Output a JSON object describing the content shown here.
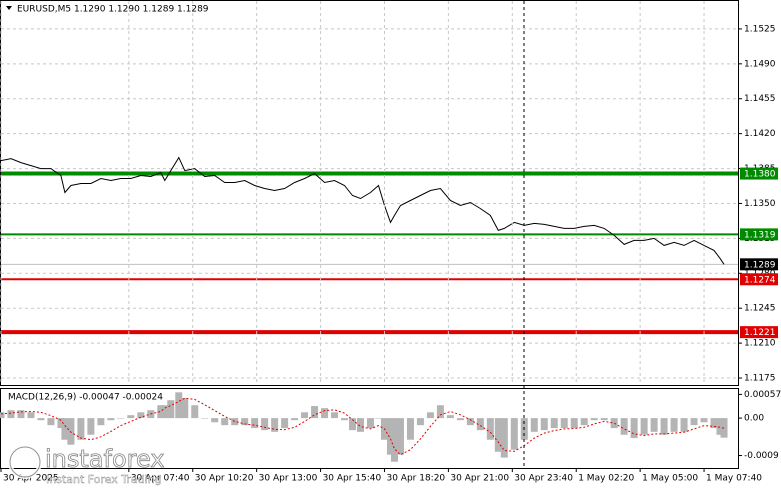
{
  "chart_data": [
    {
      "type": "line",
      "title": "EURUSD,M5  1.1290 1.1290 1.1289 1.1289",
      "color": "#000000",
      "x": [
        0,
        5,
        10,
        15,
        20,
        25,
        30,
        32,
        35,
        40,
        45,
        50,
        55,
        60,
        65,
        70,
        75,
        80,
        82,
        85,
        89,
        92,
        97,
        102,
        107,
        112,
        117,
        122,
        127,
        132,
        137,
        142,
        147,
        152,
        157,
        162,
        167,
        172,
        176,
        180,
        185,
        189,
        192,
        195,
        197,
        200,
        205,
        210,
        215,
        220,
        225,
        230,
        235,
        240,
        245,
        249,
        252,
        257,
        262,
        267,
        272,
        277,
        282,
        287,
        292,
        297,
        302,
        307,
        312,
        317,
        322,
        327,
        332,
        337,
        342,
        347,
        352,
        357,
        360,
        362
      ],
      "values": [
        1.1393,
        1.1395,
        1.1391,
        1.1388,
        1.1385,
        1.1385,
        1.1378,
        1.1361,
        1.1368,
        1.137,
        1.137,
        1.1375,
        1.1373,
        1.1375,
        1.1375,
        1.1378,
        1.1377,
        1.1381,
        1.1373,
        1.1383,
        1.1396,
        1.1383,
        1.1385,
        1.1377,
        1.1378,
        1.1371,
        1.1371,
        1.1373,
        1.1368,
        1.1365,
        1.1363,
        1.1365,
        1.1371,
        1.1375,
        1.138,
        1.1371,
        1.1373,
        1.1368,
        1.1358,
        1.1355,
        1.1361,
        1.1368,
        1.1348,
        1.1331,
        1.1338,
        1.1348,
        1.1353,
        1.1358,
        1.1363,
        1.1365,
        1.1353,
        1.1348,
        1.1351,
        1.1345,
        1.1338,
        1.1323,
        1.1325,
        1.1331,
        1.1328,
        1.133,
        1.1329,
        1.1327,
        1.1325,
        1.1325,
        1.1327,
        1.1328,
        1.1325,
        1.1318,
        1.1309,
        1.1313,
        1.1313,
        1.1315,
        1.1308,
        1.1311,
        1.1308,
        1.1313,
        1.1308,
        1.1303,
        1.1295,
        1.1289
      ],
      "xlim": [
        0,
        369
      ],
      "ylim": [
        1.1168,
        1.1553
      ],
      "yticks": [
        1.1525,
        {
          "value": 1.149,
          "label": "1.1490"
        },
        1.1455,
        {
          "value": 1.142,
          "label": "1.1420"
        },
        1.1385,
        {
          "value": 1.135,
          "label": "1.1350"
        },
        1.1315,
        {
          "value": 1.128,
          "label": "1.1280"
        },
        1.1245,
        {
          "value": 1.121,
          "label": "1.1210"
        },
        1.1175
      ],
      "grid": true,
      "levels": [
        {
          "value": 1.1289,
          "color": "#c0c0c0",
          "width": 1,
          "label_color": "#000000"
        },
        {
          "value": 1.138,
          "label": "1.1380",
          "color": "#008a00",
          "width": 4,
          "label_color": "#008a00"
        },
        {
          "value": 1.1319,
          "color": "#008a00",
          "width": 2,
          "label_color": "#008a00"
        },
        {
          "value": 1.1274,
          "color": "#e00000",
          "width": 2,
          "label_color": "#e00000"
        },
        {
          "value": 1.1221,
          "color": "#e00000",
          "width": 4,
          "label_color": "#e00000"
        }
      ]
    },
    {
      "type": "macd",
      "title": "MACD(12,26,9) -0.00047 -0.00024",
      "x": [
        0,
        5,
        10,
        15,
        20,
        25,
        30,
        32,
        35,
        40,
        45,
        50,
        55,
        60,
        65,
        70,
        75,
        80,
        82,
        85,
        89,
        92,
        97,
        102,
        107,
        112,
        117,
        122,
        127,
        132,
        137,
        142,
        147,
        152,
        157,
        162,
        167,
        172,
        176,
        180,
        185,
        189,
        192,
        195,
        197,
        200,
        205,
        210,
        215,
        220,
        225,
        230,
        235,
        240,
        245,
        249,
        252,
        257,
        262,
        267,
        272,
        277,
        282,
        287,
        292,
        297,
        302,
        307,
        312,
        317,
        322,
        327,
        332,
        337,
        342,
        347,
        352,
        357,
        360,
        362
      ],
      "series": [
        {
          "style": "histogram",
          "color": "#b4b4b4",
          "values": [
            0.00014,
            0.00019,
            0.00019,
            0.00014,
            -5e-05,
            -0.00017,
            -0.00024,
            -0.00052,
            -0.00064,
            -0.00052,
            -0.0004,
            -0.00017,
            -5e-05,
            0,
            7e-05,
            0.00014,
            0.00019,
            0.00031,
            0.00031,
            0.00043,
            0.00062,
            0.00048,
            0.00031,
            0,
            -0.0001,
            -0.00017,
            -0.00017,
            -0.00017,
            -0.00024,
            -0.00029,
            -0.00033,
            -0.00024,
            -5e-05,
            0.00014,
            0.00029,
            0.00024,
            0.00014,
            -5e-05,
            -0.00029,
            -0.00033,
            -0.00024,
            0,
            -0.00052,
            -0.00088,
            -0.00105,
            -0.00088,
            -0.00052,
            -0.00017,
            0.00014,
            0.00031,
            7e-05,
            -5e-05,
            -0.00017,
            -0.00029,
            -0.00052,
            -0.00081,
            -0.00095,
            -0.00076,
            -0.00052,
            -0.00033,
            -0.00029,
            -0.00024,
            -0.00024,
            -0.00024,
            -0.00017,
            -5e-05,
            -5e-05,
            -0.00024,
            -0.0004,
            -0.00048,
            -0.0004,
            -0.00033,
            -0.0004,
            -0.00033,
            -0.00033,
            -0.00017,
            -0.0001,
            -0.00024,
            -0.0004,
            -0.00047
          ]
        },
        {
          "style": "dashed-line",
          "color": "#e00000",
          "values": [
            0.0001,
            0.00012,
            0.00015,
            0.00016,
            0.00014,
            6e-05,
            -5e-05,
            -0.00018,
            -0.00034,
            -0.00048,
            -0.00052,
            -0.00045,
            -0.00032,
            -0.00018,
            -8e-05,
            2e-05,
            0.0001,
            0.00016,
            0.00024,
            0.0003,
            0.0004,
            0.00048,
            0.00045,
            0.00032,
            0.00018,
            4e-05,
            -8e-05,
            -0.00014,
            -0.00017,
            -0.00022,
            -0.00027,
            -0.00028,
            -0.00022,
            -8e-05,
            8e-05,
            0.00018,
            0.0002,
            0.00012,
            -4e-05,
            -0.0002,
            -0.00026,
            -0.00018,
            -0.00026,
            -0.0005,
            -0.00074,
            -0.00088,
            -0.00076,
            -0.0005,
            -0.0002,
            8e-05,
            0.00016,
            8e-05,
            -4e-05,
            -0.00018,
            -0.00034,
            -0.00058,
            -0.00078,
            -0.0008,
            -0.00066,
            -0.00048,
            -0.00036,
            -0.0003,
            -0.00026,
            -0.00025,
            -0.00022,
            -0.00014,
            -8e-05,
            -0.00012,
            -0.00026,
            -0.00038,
            -0.00042,
            -0.00038,
            -0.00038,
            -0.00036,
            -0.00034,
            -0.00026,
            -0.00018,
            -0.0002,
            -0.00022,
            -0.00024
          ]
        }
      ],
      "xlim": [
        0,
        369
      ],
      "ylim": [
        -0.0012,
        0.0007
      ],
      "yticks": [
        0.00057,
        {
          "value": 0,
          "label": "0.00"
        },
        -0.0009
      ],
      "xticks": [
        {
          "value": 0,
          "label": "30 Apr 2025"
        },
        {
          "value": 64,
          "label": "30 Apr 07:40"
        },
        {
          "value": 96,
          "label": "30 Apr 10:20"
        },
        {
          "value": 128,
          "label": "30 Apr 13:00"
        },
        {
          "value": 160,
          "label": "30 Apr 15:40"
        },
        {
          "value": 192,
          "label": "30 Apr 18:20"
        },
        {
          "value": 224,
          "label": "30 Apr 21:00"
        },
        {
          "value": 256,
          "label": "30 Apr 23:40"
        },
        {
          "value": 288,
          "label": "1 May 02:20"
        },
        {
          "value": 320,
          "label": "1 May 05:00"
        },
        {
          "value": 352,
          "label": "1 May 07:40"
        }
      ]
    }
  ],
  "watermark": {
    "brand": "instaforex",
    "tagline": "Instant Forex Trading"
  }
}
